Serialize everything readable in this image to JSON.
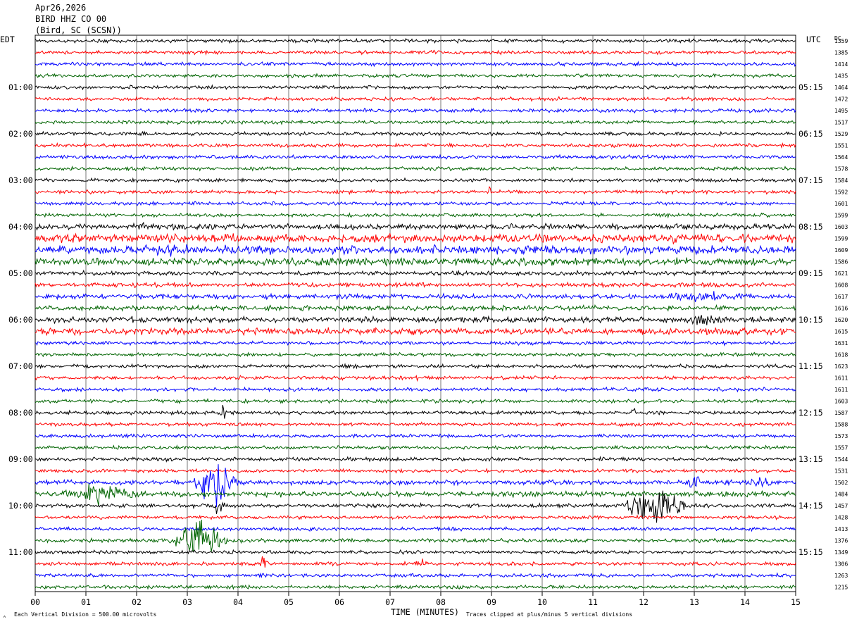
{
  "header": {
    "date": "Apr26,2026",
    "station": "BIRD HHZ CO 00",
    "location": "(Bird, SC (SCSN))"
  },
  "left_timezone": "EDT",
  "right_timezone": "UTC",
  "dc_label": "DC",
  "footer": {
    "scale_text": "Each Vertical Division =  500.00 microvolts",
    "xlabel": "TIME (MINUTES)",
    "clip_text": "Traces clipped at plus/minus 5 vertical divisions"
  },
  "chart_data": {
    "type": "line",
    "title": "BIRD HHZ CO 00",
    "xlabel": "TIME (MINUTES)",
    "xlim": [
      0,
      15
    ],
    "x_ticks": [
      "00",
      "01",
      "02",
      "03",
      "04",
      "05",
      "06",
      "07",
      "08",
      "09",
      "10",
      "11",
      "12",
      "13",
      "14",
      "15"
    ],
    "grid": true,
    "trace_colors": [
      "#000000",
      "#ff0000",
      "#0000ff",
      "#006400"
    ],
    "left_hour_labels": [
      "01:00",
      "02:00",
      "03:00",
      "04:00",
      "05:00",
      "06:00",
      "07:00",
      "08:00",
      "09:00",
      "10:00",
      "11:00"
    ],
    "right_hour_labels": [
      "05:15",
      "06:15",
      "07:15",
      "08:15",
      "09:15",
      "10:15",
      "11:15",
      "12:15",
      "13:15",
      "14:15",
      "15:15"
    ],
    "dc_offsets": [
      1359,
      1385,
      1414,
      1435,
      1464,
      1472,
      1495,
      1517,
      1529,
      1551,
      1564,
      1578,
      1584,
      1592,
      1601,
      1599,
      1603,
      1599,
      1609,
      1586,
      1621,
      1608,
      1617,
      1616,
      1620,
      1615,
      1631,
      1618,
      1623,
      1611,
      1611,
      1603,
      1587,
      1588,
      1573,
      1557,
      1544,
      1531,
      1502,
      1484,
      1457,
      1428,
      1413,
      1376,
      1349,
      1306,
      1263,
      1215
    ],
    "trace_noise": [
      1,
      1,
      1,
      1,
      1,
      1,
      1,
      1,
      1,
      1,
      1,
      1,
      1,
      1,
      1,
      1,
      1.6,
      2.4,
      2.4,
      2.2,
      1.2,
      1.2,
      1.4,
      1.4,
      1.6,
      1.8,
      1,
      1,
      1,
      1,
      1,
      1,
      1,
      1,
      1,
      1,
      1,
      1,
      1.3,
      1.5,
      1.1,
      1,
      1,
      1.1,
      1,
      1,
      1,
      1
    ],
    "events": [
      {
        "trace": 13,
        "minute": 8.95,
        "amplitude": 8,
        "duration": 0.05
      },
      {
        "trace": 16,
        "minute": 2.1,
        "amplitude": 5,
        "duration": 0.5
      },
      {
        "trace": 18,
        "minute": 2.5,
        "amplitude": 3,
        "duration": 1.2
      },
      {
        "trace": 22,
        "minute": 13.0,
        "amplitude": 5,
        "duration": 1.5
      },
      {
        "trace": 24,
        "minute": 13.2,
        "amplitude": 5,
        "duration": 0.6
      },
      {
        "trace": 29,
        "minute": 7.55,
        "amplitude": 6,
        "duration": 0.05
      },
      {
        "trace": 32,
        "minute": 3.7,
        "amplitude": 6,
        "duration": 0.15
      },
      {
        "trace": 32,
        "minute": 11.8,
        "amplitude": 6,
        "duration": 0.15
      },
      {
        "trace": 38,
        "minute": 3.55,
        "amplitude": 20,
        "duration": 0.7
      },
      {
        "trace": 38,
        "minute": 13.0,
        "amplitude": 8,
        "duration": 0.3
      },
      {
        "trace": 38,
        "minute": 14.3,
        "amplitude": 8,
        "duration": 0.4
      },
      {
        "trace": 39,
        "minute": 1.3,
        "amplitude": 8,
        "duration": 1.5
      },
      {
        "trace": 40,
        "minute": 12.25,
        "amplitude": 18,
        "duration": 1.1
      },
      {
        "trace": 40,
        "minute": 3.6,
        "amplitude": 9,
        "duration": 0.2
      },
      {
        "trace": 43,
        "minute": 3.25,
        "amplitude": 20,
        "duration": 0.9
      },
      {
        "trace": 45,
        "minute": 4.5,
        "amplitude": 9,
        "duration": 0.15
      },
      {
        "trace": 45,
        "minute": 7.6,
        "amplitude": 7,
        "duration": 0.15
      }
    ]
  }
}
